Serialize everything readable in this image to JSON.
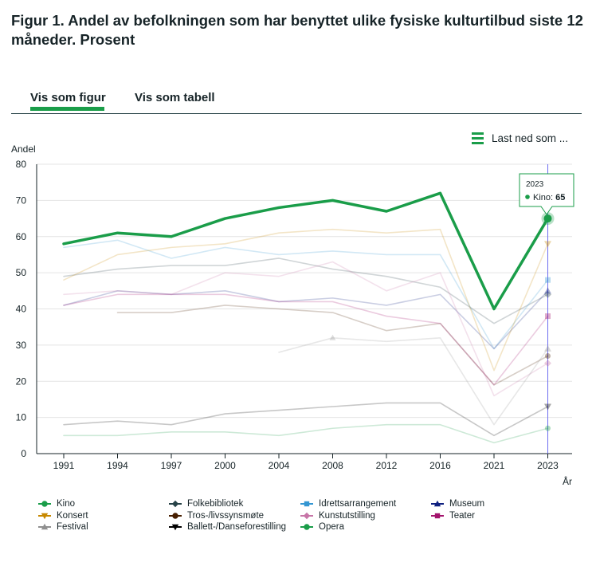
{
  "title": "Figur 1. Andel av befolkningen som har benyttet ulike fysiske kulturtilbud siste 12 måneder. Prosent",
  "tabs": [
    "Vis som figur",
    "Vis som tabell"
  ],
  "download_label": "Last ned som ...",
  "colors": {
    "accent": "#1a9d49",
    "axis": "#162327",
    "hover_line": "#6e6ef0"
  },
  "tooltip": {
    "year": "2023",
    "series": "Kino",
    "value": "65"
  },
  "chart_data": {
    "type": "line",
    "ylabel": "Andel",
    "xlabel": "År",
    "ylim": [
      0,
      80
    ],
    "yticks": [
      0,
      10,
      20,
      30,
      40,
      50,
      60,
      70,
      80
    ],
    "categories": [
      "1991",
      "1994",
      "1997",
      "2000",
      "2004",
      "2008",
      "2012",
      "2016",
      "2021",
      "2023"
    ],
    "highlight_index": 9,
    "series": [
      {
        "name": "Kino",
        "color": "#1a9d49",
        "marker": "circle",
        "highlight": true,
        "values": [
          58,
          61,
          60,
          65,
          68,
          70,
          67,
          72,
          40,
          65
        ]
      },
      {
        "name": "Folkebibliotek",
        "color": "#274247",
        "marker": "diamond",
        "values": [
          49,
          51,
          52,
          52,
          54,
          51,
          49,
          46,
          36,
          44
        ]
      },
      {
        "name": "Idrettsarrangement",
        "color": "#3396d2",
        "marker": "square",
        "values": [
          57,
          59,
          54,
          57,
          55,
          56,
          55,
          55,
          29,
          48
        ]
      },
      {
        "name": "Museum",
        "color": "#0f2080",
        "marker": "triangle",
        "values": [
          41,
          45,
          44,
          45,
          42,
          43,
          41,
          44,
          29,
          45
        ]
      },
      {
        "name": "Konsert",
        "color": "#c78800",
        "marker": "triangle-down",
        "values": [
          48,
          55,
          57,
          58,
          61,
          62,
          61,
          62,
          23,
          58
        ]
      },
      {
        "name": "Tros-/livssynsmøte",
        "color": "#471f00",
        "marker": "circle",
        "values": [
          null,
          39,
          39,
          41,
          40,
          39,
          34,
          36,
          19,
          27
        ]
      },
      {
        "name": "Kunstutstilling",
        "color": "#c775a7",
        "marker": "diamond",
        "values": [
          44,
          45,
          44,
          50,
          49,
          53,
          45,
          50,
          16,
          25
        ]
      },
      {
        "name": "Teater",
        "color": "#a3136c",
        "marker": "square",
        "values": [
          41,
          44,
          44,
          44,
          42,
          42,
          38,
          36,
          19,
          38
        ]
      },
      {
        "name": "Festival",
        "color": "#909090",
        "marker": "triangle",
        "values": [
          null,
          null,
          null,
          null,
          28,
          32,
          31,
          32,
          8,
          29
        ]
      },
      {
        "name": "Ballett-/Danseforestilling",
        "color": "#000000",
        "marker": "triangle-down",
        "values": [
          8,
          9,
          8,
          11,
          12,
          13,
          14,
          14,
          5,
          13
        ]
      },
      {
        "name": "Opera",
        "color": "#1a9d49",
        "marker": "circle",
        "values": [
          5,
          5,
          6,
          6,
          5,
          7,
          8,
          8,
          3,
          7
        ]
      }
    ]
  }
}
